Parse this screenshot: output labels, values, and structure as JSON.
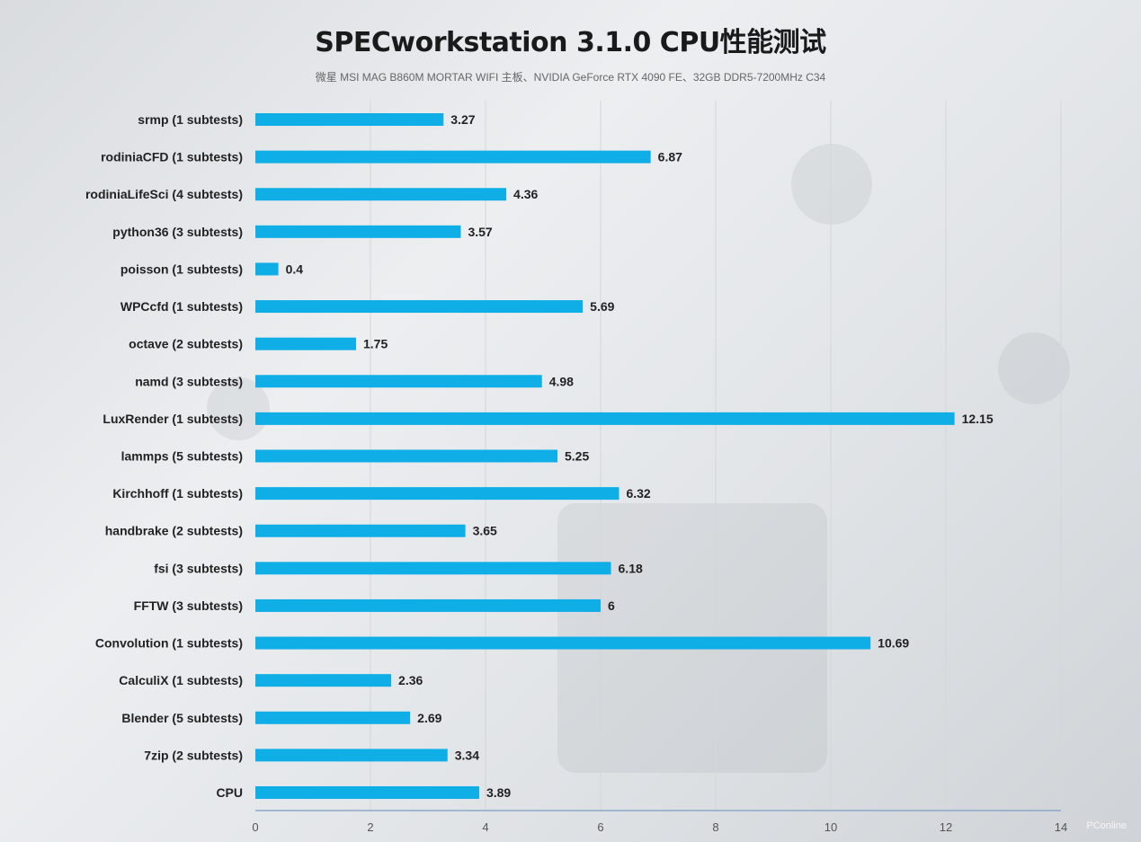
{
  "chart_data": {
    "type": "bar",
    "orientation": "horizontal",
    "title": "SPECworkstation 3.1.0 CPU性能测试",
    "subtitle": "微星 MSI MAG B860M MORTAR WIFI 主板、NVIDIA GeForce RTX 4090 FE、32GB DDR5-7200MHz C34",
    "categories": [
      "srmp (1 subtests)",
      "rodiniaCFD (1 subtests)",
      "rodiniaLifeSci (4 subtests)",
      "python36 (3 subtests)",
      "poisson (1 subtests)",
      "WPCcfd (1 subtests)",
      "octave (2 subtests)",
      "namd (3 subtests)",
      "LuxRender (1 subtests)",
      "lammps (5 subtests)",
      "Kirchhoff (1 subtests)",
      "handbrake (2 subtests)",
      "fsi (3 subtests)",
      "FFTW (3 subtests)",
      "Convolution (1 subtests)",
      "CalculiX (1 subtests)",
      "Blender (5 subtests)",
      "7zip (2 subtests)",
      "CPU"
    ],
    "values": [
      3.27,
      6.87,
      4.36,
      3.57,
      0.4,
      5.69,
      1.75,
      4.98,
      12.15,
      5.25,
      6.32,
      3.65,
      6.18,
      6,
      10.69,
      2.36,
      2.69,
      3.34,
      3.89
    ],
    "value_labels": [
      "3.27",
      "6.87",
      "4.36",
      "3.57",
      "0.4",
      "5.69",
      "1.75",
      "4.98",
      "12.15",
      "5.25",
      "6.32",
      "3.65",
      "6.18",
      "6",
      "10.69",
      "2.36",
      "2.69",
      "3.34",
      "3.89"
    ],
    "xlim": [
      0,
      14
    ],
    "xticks": [
      "0",
      "2",
      "4",
      "6",
      "8",
      "10",
      "12",
      "14"
    ],
    "grid": true,
    "bar_color": "#10aee6",
    "xlabel": "",
    "ylabel": ""
  },
  "watermark": "PConline"
}
